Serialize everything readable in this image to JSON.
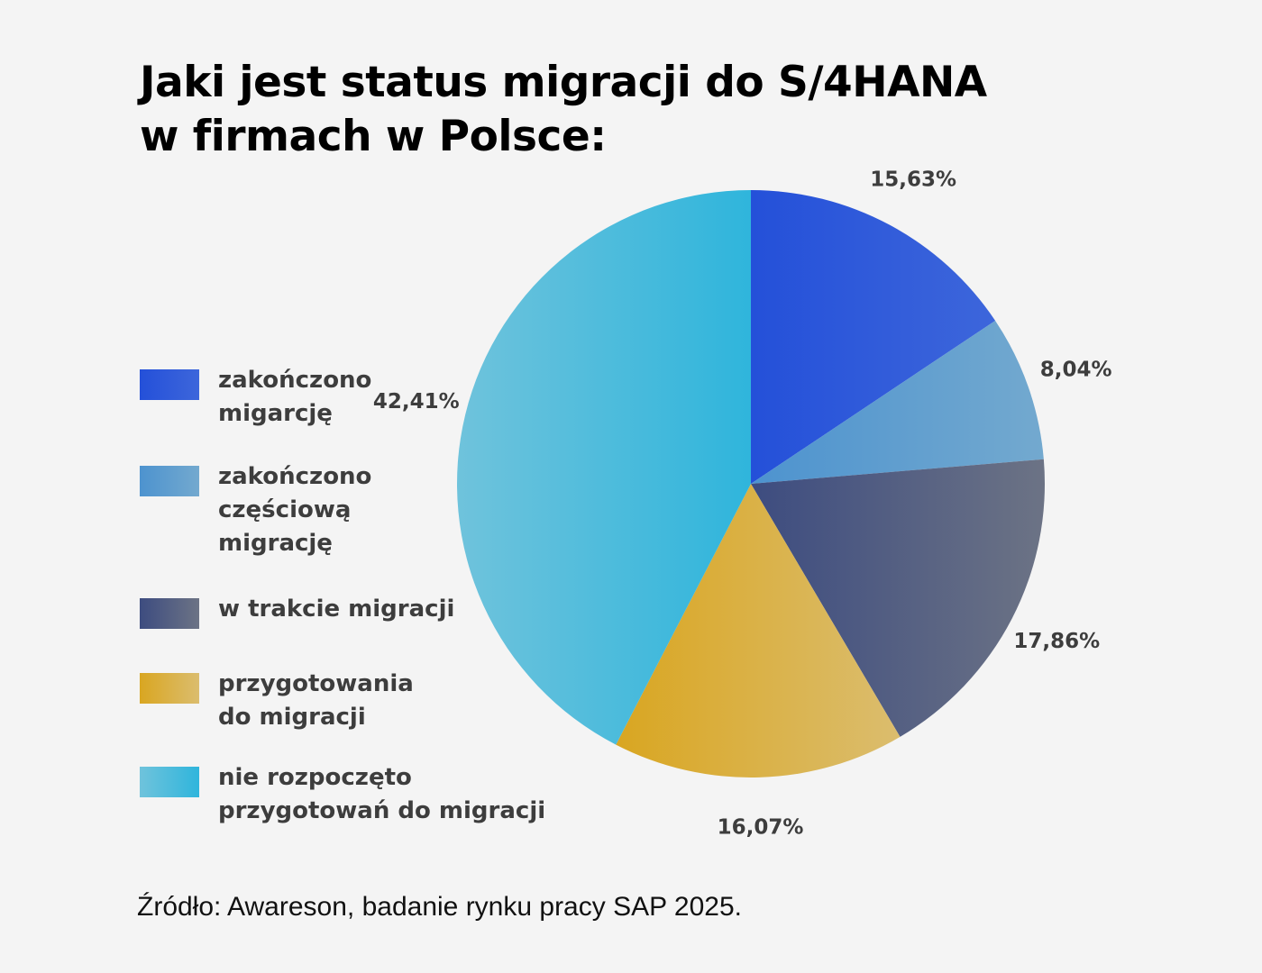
{
  "title_line1": "Jaki jest status migracji do S/4HANA",
  "title_line2": "w firmach w Polsce:",
  "source": "Źródło: Awareson, badanie rynku pracy SAP 2025.",
  "colors": {
    "background": "#f4f4f4",
    "text": "#3d3d3d"
  },
  "chart_data": {
    "type": "pie",
    "start_angle_deg": 0,
    "direction": "clockwise",
    "slices": [
      {
        "label": "zakończono\nmigarcję",
        "value": 15.63,
        "value_label": "15,63%",
        "color_from": "#2450d9",
        "color_to": "#3d66db"
      },
      {
        "label": "zakończono\nczęściową\nmigrację",
        "value": 8.04,
        "value_label": "8,04%",
        "color_from": "#4d93cf",
        "color_to": "#73a9cf"
      },
      {
        "label": "w trakcie migracji",
        "value": 17.86,
        "value_label": "17,86%",
        "color_from": "#3d4c80",
        "color_to": "#6c7385"
      },
      {
        "label": "przygotowania\ndo migracji",
        "value": 16.07,
        "value_label": "16,07%",
        "color_from": "#d9a621",
        "color_to": "#dbbd6e"
      },
      {
        "label": "nie rozpoczęto\nprzygotowań do migracji",
        "value": 42.41,
        "value_label": "42,41%",
        "color_from": "#6fc3dc",
        "color_to": "#2fb5dc"
      }
    ]
  }
}
